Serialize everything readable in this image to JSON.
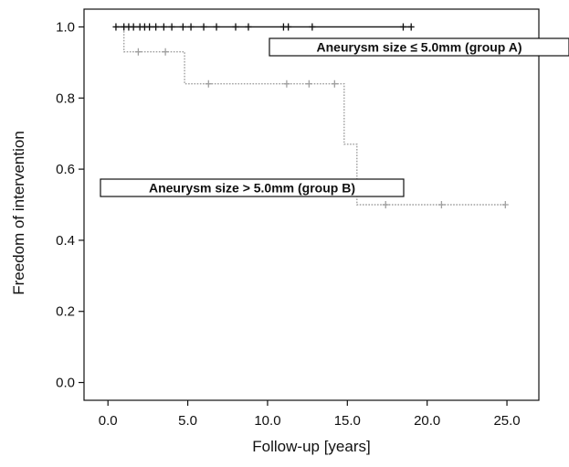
{
  "chart_data": {
    "type": "line",
    "title": "",
    "xlabel": "Follow-up [years]",
    "ylabel": "Freedom of intervention",
    "xlim": [
      -1.5,
      27.0
    ],
    "ylim": [
      -0.05,
      1.05
    ],
    "x_ticks": [
      0.0,
      5.0,
      10.0,
      15.0,
      20.0,
      25.0
    ],
    "x_tick_labels": [
      "0.0",
      "5.0",
      "10.0",
      "15.0",
      "20.0",
      "25.0"
    ],
    "y_ticks": [
      0.0,
      0.2,
      0.4,
      0.6,
      0.8,
      1.0
    ],
    "y_tick_labels": [
      "0.0",
      "0.2",
      "0.4",
      "0.6",
      "0.8",
      "1.0"
    ],
    "grid": false,
    "series": [
      {
        "name": "Aneurysm size ≤ 5.0mm (group A)",
        "color": "#111111",
        "line_style": "solid",
        "steps": [
          [
            0.5,
            1.0
          ],
          [
            19.0,
            1.0
          ]
        ],
        "censored": [
          0.5,
          1.0,
          1.3,
          1.6,
          2.0,
          2.3,
          2.6,
          3.0,
          3.5,
          4.0,
          4.7,
          5.2,
          6.0,
          6.8,
          8.0,
          8.8,
          11.0,
          11.3,
          12.8,
          18.5,
          19.0
        ],
        "censored_y": [
          1.0,
          1.0,
          1.0,
          1.0,
          1.0,
          1.0,
          1.0,
          1.0,
          1.0,
          1.0,
          1.0,
          1.0,
          1.0,
          1.0,
          1.0,
          1.0,
          1.0,
          1.0,
          1.0,
          1.0,
          1.0
        ]
      },
      {
        "name": "Aneurysm size > 5.0mm (group B)",
        "color": "#a0a0a0",
        "line_style": "dotted",
        "steps": [
          [
            0.9,
            1.0
          ],
          [
            1.0,
            0.93
          ],
          [
            4.8,
            0.84
          ],
          [
            14.8,
            0.67
          ],
          [
            15.6,
            0.5
          ],
          [
            24.9,
            0.5
          ]
        ],
        "censored": [
          1.9,
          3.6,
          6.3,
          11.2,
          12.6,
          14.2,
          17.4,
          20.9,
          24.9
        ],
        "censored_y": [
          0.93,
          0.93,
          0.84,
          0.84,
          0.84,
          0.84,
          0.5,
          0.5,
          0.5
        ]
      }
    ],
    "legend": [
      {
        "label": "Aneurysm size ≤ 5.0mm (group A)",
        "placement": "top-right"
      },
      {
        "label": "Aneurysm size > 5.0mm (group B)",
        "placement": "middle-left"
      }
    ]
  }
}
